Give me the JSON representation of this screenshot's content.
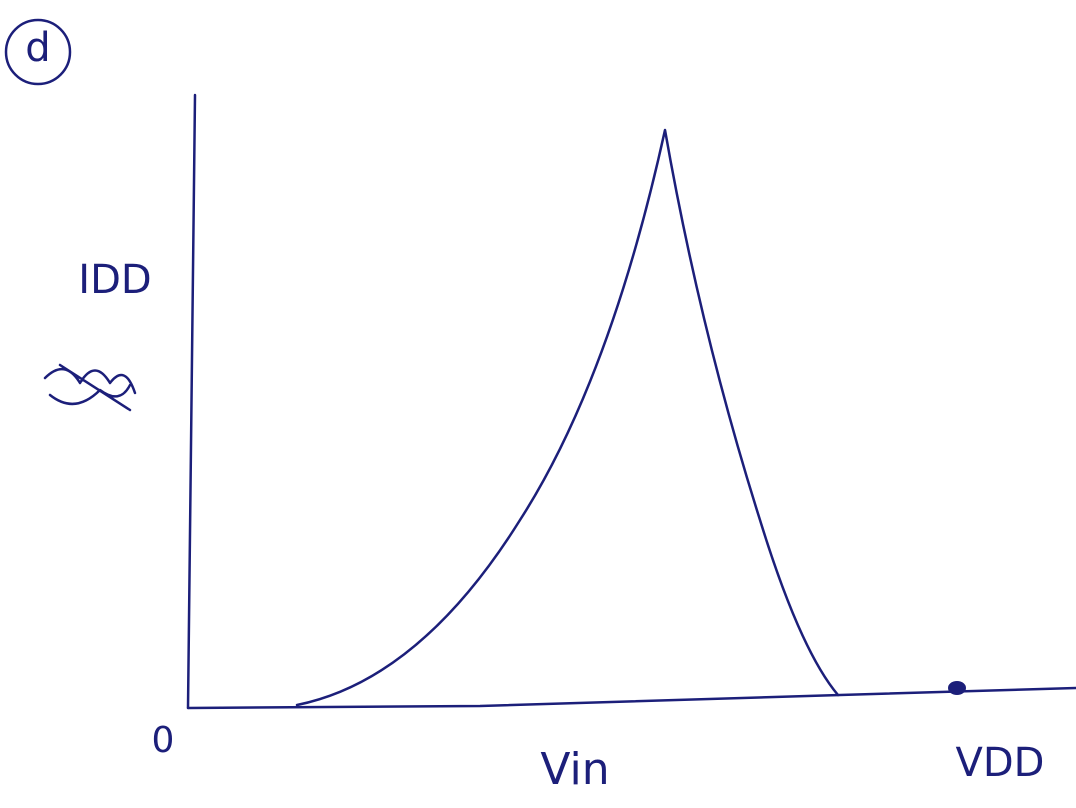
{
  "label": "d",
  "y_axis_label": "IDD",
  "origin_label": "0",
  "x_axis_labels": [
    "Vin",
    "VDD"
  ]
}
